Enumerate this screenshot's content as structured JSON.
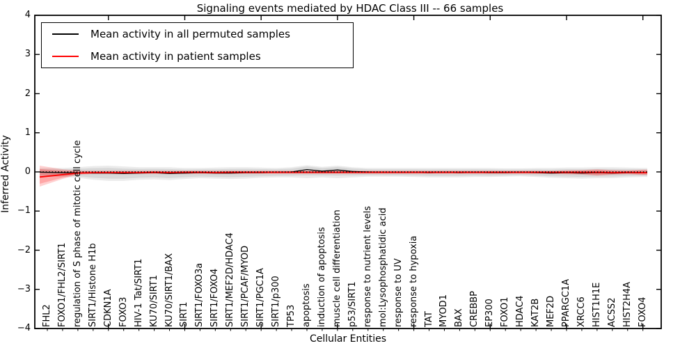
{
  "chart_data": {
    "type": "line",
    "title": "Signaling events mediated by HDAC Class III -- 66 samples",
    "xlabel": "Cellular Entities",
    "ylabel": "Inferred Activity",
    "ylim": [
      -4,
      4
    ],
    "y_ticks": [
      "4",
      "3",
      "2",
      "1",
      "0",
      "−1",
      "−2",
      "−3",
      "−4"
    ],
    "y_tick_values": [
      4,
      3,
      2,
      1,
      0,
      -1,
      -2,
      -3,
      -4
    ],
    "x_major_tick_positions": [
      5,
      10,
      15,
      20,
      25,
      30,
      35,
      40
    ],
    "grid": false,
    "legend_position": "upper left",
    "legend": [
      {
        "label": "Mean activity in all permuted samples",
        "color": "#000000"
      },
      {
        "label": "Mean activity in patient samples",
        "color": "#ff0000"
      }
    ],
    "zero_line": {
      "y": 0,
      "style": "dotted",
      "color": "#000000"
    },
    "categories": [
      "FHL2",
      "FOXO1/FHL2/SIRT1",
      "regulation of S phase of mitotic cell cycle",
      "SIRT1/Histone H1b",
      "CDKN1A",
      "FOXO3",
      "HIV-1 Tat/SIRT1",
      "KU70/SIRT1",
      "KU70/SIRT1/BAX",
      "SIRT1",
      "SIRT1/FOXO3a",
      "SIRT1/FOXO4",
      "SIRT1/MEF2D/HDAC4",
      "SIRT1/PCAF/MYOD",
      "SIRT1/PGC1A",
      "SIRT1/p300",
      "TP53",
      "apoptosis",
      "induction of apoptosis",
      "muscle cell differentiation",
      "p53/SIRT1",
      "response to nutrient levels",
      "mol:Lysophosphatidic acid",
      "response to UV",
      "response to hypoxia",
      "TAT",
      "MYOD1",
      "BAX",
      "CREBBP",
      "EP300",
      "FOXO1",
      "HDAC4",
      "KAT2B",
      "MEF2D",
      "PPARGC1A",
      "XRCC6",
      "HIST1H1E",
      "ACSS2",
      "HIST2H4A",
      "FOXO4"
    ],
    "series": [
      {
        "name": "Mean activity in all permuted samples",
        "color": "#000000",
        "values": [
          -0.01,
          -0.02,
          -0.02,
          -0.03,
          -0.03,
          -0.04,
          -0.03,
          -0.02,
          -0.04,
          -0.03,
          -0.02,
          -0.03,
          -0.03,
          -0.02,
          -0.02,
          -0.01,
          0.0,
          0.06,
          0.02,
          0.05,
          0.01,
          0.0,
          -0.01,
          -0.01,
          -0.01,
          -0.02,
          -0.01,
          -0.02,
          -0.01,
          -0.02,
          -0.02,
          -0.01,
          -0.02,
          -0.03,
          -0.02,
          -0.03,
          -0.02,
          -0.03,
          -0.02,
          -0.02
        ]
      },
      {
        "name": "Mean activity in patient samples",
        "color": "#ff0000",
        "values": [
          -0.11,
          -0.07,
          -0.03,
          -0.02,
          -0.02,
          -0.02,
          -0.02,
          -0.01,
          -0.02,
          -0.01,
          -0.01,
          -0.02,
          -0.01,
          -0.01,
          -0.01,
          -0.01,
          -0.01,
          -0.01,
          -0.01,
          -0.01,
          -0.01,
          -0.01,
          -0.01,
          -0.01,
          -0.01,
          -0.01,
          -0.01,
          -0.01,
          -0.01,
          -0.01,
          -0.01,
          -0.01,
          -0.01,
          -0.01,
          -0.01,
          -0.01,
          -0.01,
          -0.02,
          -0.01,
          -0.02
        ]
      }
    ],
    "bands": [
      {
        "name": "permuted-confidence-band",
        "color": "#000000",
        "opacity_outer": 0.08,
        "opacity_inner": 0.08,
        "upper": [
          0.1,
          0.1,
          0.12,
          0.15,
          0.16,
          0.14,
          0.12,
          0.12,
          0.12,
          0.1,
          0.1,
          0.11,
          0.12,
          0.12,
          0.11,
          0.1,
          0.12,
          0.17,
          0.13,
          0.16,
          0.12,
          0.1,
          0.1,
          0.1,
          0.1,
          0.1,
          0.1,
          0.1,
          0.1,
          0.1,
          0.09,
          0.09,
          0.1,
          0.1,
          0.11,
          0.11,
          0.12,
          0.12,
          0.11,
          0.1
        ],
        "lower": [
          -0.12,
          -0.13,
          -0.15,
          -0.2,
          -0.23,
          -0.23,
          -0.2,
          -0.19,
          -0.21,
          -0.18,
          -0.16,
          -0.17,
          -0.18,
          -0.17,
          -0.15,
          -0.14,
          -0.14,
          -0.16,
          -0.14,
          -0.16,
          -0.14,
          -0.12,
          -0.12,
          -0.12,
          -0.13,
          -0.14,
          -0.14,
          -0.14,
          -0.13,
          -0.13,
          -0.12,
          -0.11,
          -0.13,
          -0.15,
          -0.16,
          -0.17,
          -0.16,
          -0.16,
          -0.14,
          -0.13
        ]
      },
      {
        "name": "patient-confidence-band",
        "color": "#ff0000",
        "opacity_outer": 0.18,
        "opacity_inner": 0.2,
        "upper": [
          0.13,
          0.07,
          0.03,
          0.03,
          0.03,
          0.03,
          0.03,
          0.03,
          0.03,
          0.03,
          0.03,
          0.03,
          0.03,
          0.03,
          0.03,
          0.03,
          0.03,
          0.03,
          0.03,
          0.03,
          0.03,
          0.03,
          0.03,
          0.03,
          0.03,
          0.03,
          0.03,
          0.03,
          0.03,
          0.03,
          0.03,
          0.03,
          0.03,
          0.03,
          0.04,
          0.05,
          0.07,
          0.05,
          0.04,
          0.06
        ],
        "lower": [
          -0.31,
          -0.18,
          -0.07,
          -0.05,
          -0.05,
          -0.05,
          -0.05,
          -0.05,
          -0.05,
          -0.05,
          -0.05,
          -0.05,
          -0.05,
          -0.05,
          -0.05,
          -0.05,
          -0.05,
          -0.05,
          -0.05,
          -0.05,
          -0.05,
          -0.05,
          -0.05,
          -0.05,
          -0.05,
          -0.05,
          -0.05,
          -0.05,
          -0.05,
          -0.05,
          -0.05,
          -0.05,
          -0.05,
          -0.05,
          -0.06,
          -0.07,
          -0.1,
          -0.07,
          -0.06,
          -0.08
        ]
      }
    ],
    "inner_band_fraction": 0.7
  }
}
